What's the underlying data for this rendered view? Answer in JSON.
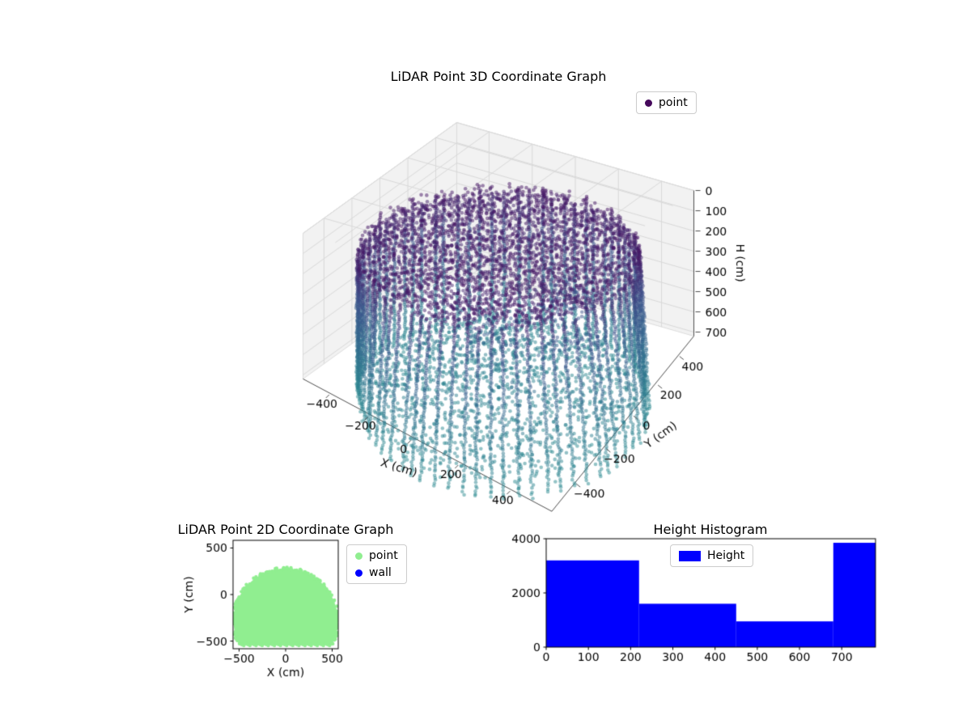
{
  "figure": {
    "background": "#ffffff"
  },
  "chart_data": [
    {
      "id": "lidar-3d",
      "type": "scatter3d",
      "title": "LiDAR Point 3D Coordinate Graph",
      "legend": [
        {
          "label": "point",
          "marker": "circle",
          "color": "#45085b"
        }
      ],
      "axes": {
        "x": {
          "label": "X (cm)",
          "ticks": [
            -400,
            -200,
            0,
            200,
            400
          ],
          "range": [
            -550,
            550
          ]
        },
        "y": {
          "label": "Y (cm)",
          "ticks": [
            -400,
            -200,
            0,
            200,
            400
          ],
          "range": [
            -550,
            550
          ]
        },
        "h": {
          "label": "H (cm)",
          "ticks": [
            0,
            100,
            200,
            300,
            400,
            500,
            600,
            700
          ],
          "range": [
            0,
            720
          ],
          "direction": "inverted, H increases downward"
        }
      },
      "pane_color": "#f2f2f2",
      "grid_color": "#d9d9d9",
      "point_cloud": {
        "description": "cylindrical room scan: dense ceiling disc near H=0, 72 vertical wall columns at radius ~550 cm, floor disc near H=700, scattered object clusters at mid height",
        "radius_cm": 550,
        "height_range_cm": [
          0,
          720
        ],
        "wall_columns": 72,
        "color_encoding": "H mapped to truncated viridis (dark purple at ceiling to teal at floor)",
        "color_stops": [
          {
            "t": 0.0,
            "color": "#45085b"
          },
          {
            "t": 0.3,
            "color": "#3c4f8a"
          },
          {
            "t": 0.6,
            "color": "#31688e"
          },
          {
            "t": 1.0,
            "color": "#2a8a8f"
          }
        ],
        "marker_alpha": 0.5
      }
    },
    {
      "id": "lidar-2d",
      "type": "scatter",
      "title": "LiDAR Point 2D Coordinate Graph",
      "xlabel": "X (cm)",
      "ylabel": "Y (cm)",
      "xlim": [
        -565,
        565
      ],
      "ylim": [
        -582,
        582
      ],
      "xticks": [
        -500,
        0,
        500
      ],
      "yticks": [
        -500,
        0,
        500
      ],
      "series": [
        {
          "name": "point",
          "color": "#90ee90",
          "shape": {
            "type": "clipped-disc",
            "center_cm": [
              0,
              -280
            ],
            "radius_cm": 560,
            "clip_y_min_cm": -545
          }
        },
        {
          "name": "wall",
          "color": "#0000ff",
          "shape": {
            "type": "not-visible"
          }
        }
      ]
    },
    {
      "id": "height-histogram",
      "type": "bar",
      "title": "Height Histogram",
      "legend": [
        {
          "label": "Height",
          "marker": "rect",
          "color": "#0000ff"
        }
      ],
      "bar_color": "#0000ff",
      "bin_edges_cm": [
        0,
        220,
        450,
        680,
        780
      ],
      "counts": [
        3200,
        1600,
        950,
        3850
      ],
      "xticks": [
        0,
        100,
        200,
        300,
        400,
        500,
        600,
        700
      ],
      "yticks": [
        0,
        2000,
        4000
      ],
      "xlim": [
        0,
        780
      ],
      "ylim": [
        0,
        4000
      ]
    }
  ]
}
